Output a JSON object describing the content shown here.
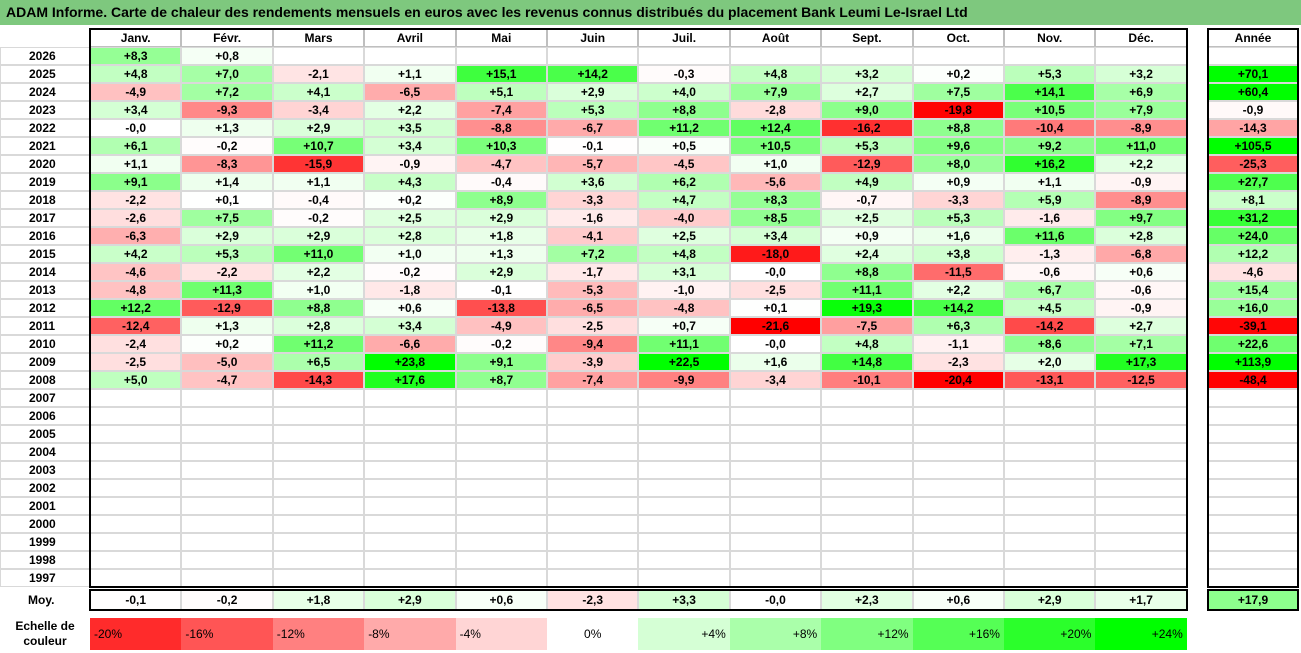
{
  "title": "ADAM Informe. Carte de chaleur des rendements mensuels en euros avec les revenus connus distribués du placement Bank Leumi Le-Israel Ltd",
  "colors": {
    "title_bg": "#7ec87e",
    "max_green": "#00ff00",
    "max_red": "#ff0000"
  },
  "chart_data": {
    "type": "heatmap",
    "months": [
      "Janv.",
      "Févr.",
      "Mars",
      "Avril",
      "Mai",
      "Juin",
      "Juil.",
      "Août",
      "Sept.",
      "Oct.",
      "Nov.",
      "Déc."
    ],
    "annual_header": "Année",
    "rows": [
      {
        "year": "2026",
        "values": [
          "+8,3",
          "+0,8",
          "",
          "",
          "",
          "",
          "",
          "",
          "",
          "",
          "",
          ""
        ],
        "annual": ""
      },
      {
        "year": "2025",
        "values": [
          "+4,8",
          "+7,0",
          "-2,1",
          "+1,1",
          "+15,1",
          "+14,2",
          "-0,3",
          "+4,8",
          "+3,2",
          "+0,2",
          "+5,3",
          "+3,2"
        ],
        "annual": "+70,1"
      },
      {
        "year": "2024",
        "values": [
          "-4,9",
          "+7,2",
          "+4,1",
          "-6,5",
          "+5,1",
          "+2,9",
          "+4,0",
          "+7,9",
          "+2,7",
          "+7,5",
          "+14,1",
          "+6,9"
        ],
        "annual": "+60,4"
      },
      {
        "year": "2023",
        "values": [
          "+3,4",
          "-9,3",
          "-3,4",
          "+2,2",
          "-7,4",
          "+5,3",
          "+8,8",
          "-2,8",
          "+9,0",
          "-19,8",
          "+10,5",
          "+7,9"
        ],
        "annual": "-0,9"
      },
      {
        "year": "2022",
        "values": [
          "-0,0",
          "+1,3",
          "+2,9",
          "+3,5",
          "-8,8",
          "-6,7",
          "+11,2",
          "+12,4",
          "-16,2",
          "+8,8",
          "-10,4",
          "-8,9"
        ],
        "annual": "-14,3"
      },
      {
        "year": "2021",
        "values": [
          "+6,1",
          "-0,2",
          "+10,7",
          "+3,4",
          "+10,3",
          "-0,1",
          "+0,5",
          "+10,5",
          "+5,3",
          "+9,6",
          "+9,2",
          "+11,0"
        ],
        "annual": "+105,5"
      },
      {
        "year": "2020",
        "values": [
          "+1,1",
          "-8,3",
          "-15,9",
          "-0,9",
          "-4,7",
          "-5,7",
          "-4,5",
          "+1,0",
          "-12,9",
          "+8,0",
          "+16,2",
          "+2,2"
        ],
        "annual": "-25,3"
      },
      {
        "year": "2019",
        "values": [
          "+9,1",
          "+1,4",
          "+1,1",
          "+4,3",
          "-0,4",
          "+3,6",
          "+6,2",
          "-5,6",
          "+4,9",
          "+0,9",
          "+1,1",
          "-0,9"
        ],
        "annual": "+27,7"
      },
      {
        "year": "2018",
        "values": [
          "-2,2",
          "+0,1",
          "-0,4",
          "+0,2",
          "+8,9",
          "-3,3",
          "+4,7",
          "+8,3",
          "-0,7",
          "-3,3",
          "+5,9",
          "-8,9"
        ],
        "annual": "+8,1"
      },
      {
        "year": "2017",
        "values": [
          "-2,6",
          "+7,5",
          "-0,2",
          "+2,5",
          "+2,9",
          "-1,6",
          "-4,0",
          "+8,5",
          "+2,5",
          "+5,3",
          "-1,6",
          "+9,7"
        ],
        "annual": "+31,2"
      },
      {
        "year": "2016",
        "values": [
          "-6,3",
          "+2,9",
          "+2,9",
          "+2,8",
          "+1,8",
          "-4,1",
          "+2,5",
          "+3,4",
          "+0,9",
          "+1,6",
          "+11,6",
          "+2,8"
        ],
        "annual": "+24,0"
      },
      {
        "year": "2015",
        "values": [
          "+4,2",
          "+5,3",
          "+11,0",
          "+1,0",
          "+1,3",
          "+7,2",
          "+4,8",
          "-18,0",
          "+2,4",
          "+3,8",
          "-1,3",
          "-6,8"
        ],
        "annual": "+12,2"
      },
      {
        "year": "2014",
        "values": [
          "-4,6",
          "-2,2",
          "+2,2",
          "-0,2",
          "+2,9",
          "-1,7",
          "+3,1",
          "-0,0",
          "+8,8",
          "-11,5",
          "-0,6",
          "+0,6"
        ],
        "annual": "-4,6"
      },
      {
        "year": "2013",
        "values": [
          "-4,8",
          "+11,3",
          "+1,0",
          "-1,8",
          "-0,1",
          "-5,3",
          "-1,0",
          "-2,5",
          "+11,1",
          "+2,2",
          "+6,7",
          "-0,6"
        ],
        "annual": "+15,4"
      },
      {
        "year": "2012",
        "values": [
          "+12,2",
          "-12,9",
          "+8,8",
          "+0,6",
          "-13,8",
          "-6,5",
          "-4,8",
          "+0,1",
          "+19,3",
          "+14,2",
          "+4,5",
          "-0,9"
        ],
        "annual": "+16,0"
      },
      {
        "year": "2011",
        "values": [
          "-12,4",
          "+1,3",
          "+2,8",
          "+3,4",
          "-4,9",
          "-2,5",
          "+0,7",
          "-21,6",
          "-7,5",
          "+6,3",
          "-14,2",
          "+2,7"
        ],
        "annual": "-39,1"
      },
      {
        "year": "2010",
        "values": [
          "-2,4",
          "+0,2",
          "+11,2",
          "-6,6",
          "-0,2",
          "-9,4",
          "+11,1",
          "-0,0",
          "+4,8",
          "-1,1",
          "+8,6",
          "+7,1"
        ],
        "annual": "+22,6"
      },
      {
        "year": "2009",
        "values": [
          "-2,5",
          "-5,0",
          "+6,5",
          "+23,8",
          "+9,1",
          "-3,9",
          "+22,5",
          "+1,6",
          "+14,8",
          "-2,3",
          "+2,0",
          "+17,3"
        ],
        "annual": "+113,9"
      },
      {
        "year": "2008",
        "values": [
          "+5,0",
          "-4,7",
          "-14,3",
          "+17,6",
          "+8,7",
          "-7,4",
          "-9,9",
          "-3,4",
          "-10,1",
          "-20,4",
          "-13,1",
          "-12,5"
        ],
        "annual": "-48,4"
      },
      {
        "year": "2007",
        "values": [
          "",
          "",
          "",
          "",
          "",
          "",
          "",
          "",
          "",
          "",
          "",
          ""
        ],
        "annual": ""
      },
      {
        "year": "2006",
        "values": [
          "",
          "",
          "",
          "",
          "",
          "",
          "",
          "",
          "",
          "",
          "",
          ""
        ],
        "annual": ""
      },
      {
        "year": "2005",
        "values": [
          "",
          "",
          "",
          "",
          "",
          "",
          "",
          "",
          "",
          "",
          "",
          ""
        ],
        "annual": ""
      },
      {
        "year": "2004",
        "values": [
          "",
          "",
          "",
          "",
          "",
          "",
          "",
          "",
          "",
          "",
          "",
          ""
        ],
        "annual": ""
      },
      {
        "year": "2003",
        "values": [
          "",
          "",
          "",
          "",
          "",
          "",
          "",
          "",
          "",
          "",
          "",
          ""
        ],
        "annual": ""
      },
      {
        "year": "2002",
        "values": [
          "",
          "",
          "",
          "",
          "",
          "",
          "",
          "",
          "",
          "",
          "",
          ""
        ],
        "annual": ""
      },
      {
        "year": "2001",
        "values": [
          "",
          "",
          "",
          "",
          "",
          "",
          "",
          "",
          "",
          "",
          "",
          ""
        ],
        "annual": ""
      },
      {
        "year": "2000",
        "values": [
          "",
          "",
          "",
          "",
          "",
          "",
          "",
          "",
          "",
          "",
          "",
          ""
        ],
        "annual": ""
      },
      {
        "year": "1999",
        "values": [
          "",
          "",
          "",
          "",
          "",
          "",
          "",
          "",
          "",
          "",
          "",
          ""
        ],
        "annual": ""
      },
      {
        "year": "1998",
        "values": [
          "",
          "",
          "",
          "",
          "",
          "",
          "",
          "",
          "",
          "",
          "",
          ""
        ],
        "annual": ""
      },
      {
        "year": "1997",
        "values": [
          "",
          "",
          "",
          "",
          "",
          "",
          "",
          "",
          "",
          "",
          "",
          ""
        ],
        "annual": ""
      }
    ],
    "average": {
      "label": "Moy.",
      "values": [
        "-0,1",
        "-0,2",
        "+1,8",
        "+2,9",
        "+0,6",
        "-2,3",
        "+3,3",
        "-0,0",
        "+2,3",
        "+0,6",
        "+2,9",
        "+1,7"
      ],
      "annual": "+17,9"
    },
    "color_scale": {
      "label": "Echelle de couleur",
      "steps": [
        "-20%",
        "-16%",
        "-12%",
        "-8%",
        "-4%",
        "0%",
        "+4%",
        "+8%",
        "+12%",
        "+16%",
        "+20%",
        "+24%"
      ]
    }
  }
}
